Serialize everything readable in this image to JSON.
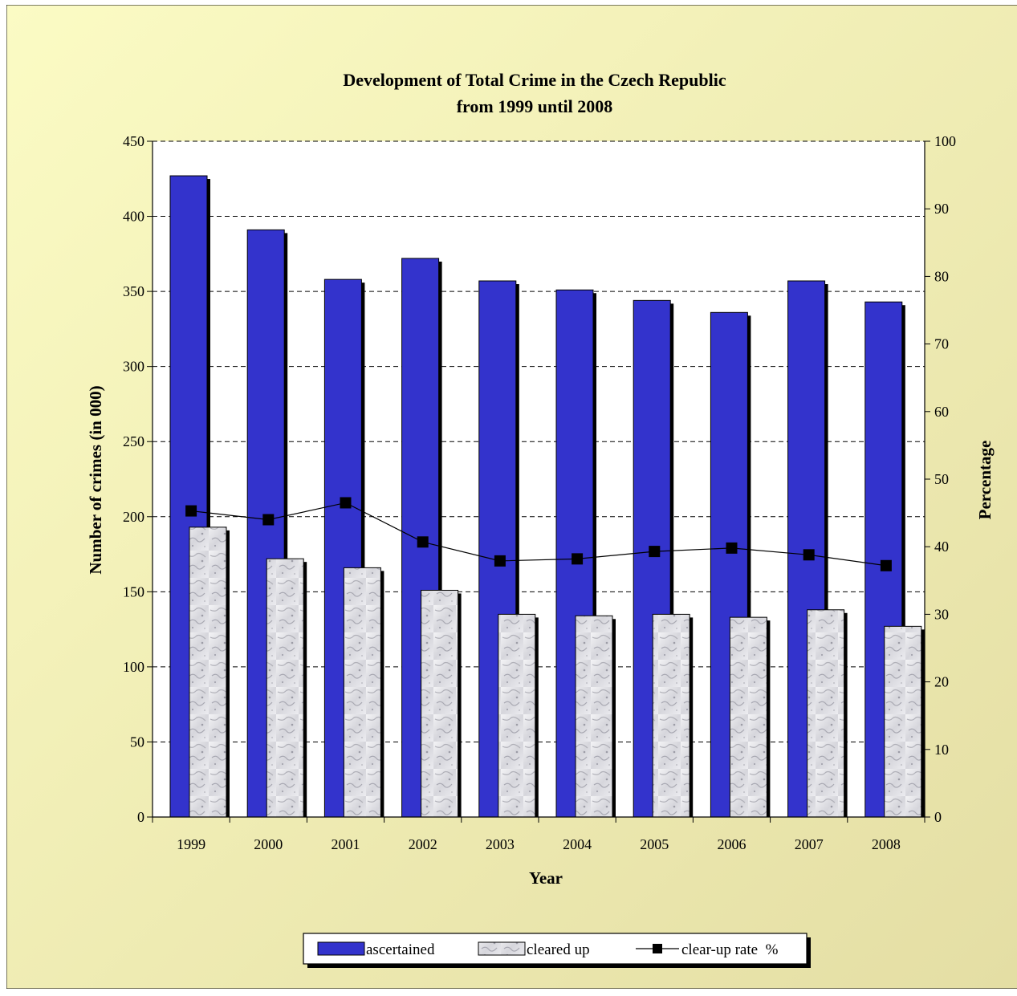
{
  "chart_data": {
    "type": "bar",
    "title": "Development of Total Crime in the Czech Republic",
    "subtitle": "from 1999 until 2008",
    "xlabel": "Year",
    "ylabel": "Number of crimes (in 000)",
    "y2label": "Percentage",
    "categories": [
      "1999",
      "2000",
      "2001",
      "2002",
      "2003",
      "2004",
      "2005",
      "2006",
      "2007",
      "2008"
    ],
    "ylim": [
      0,
      450
    ],
    "yticks": [
      0,
      50,
      100,
      150,
      200,
      250,
      300,
      350,
      400,
      450
    ],
    "y2lim": [
      0,
      100
    ],
    "y2ticks": [
      0,
      10,
      20,
      30,
      40,
      50,
      60,
      70,
      80,
      90,
      100
    ],
    "grid": "horizontal dashed",
    "legend_position": "bottom",
    "series": [
      {
        "name": "ascertained",
        "type": "bar",
        "axis": "left",
        "color": "#3333cc",
        "values": [
          427,
          391,
          358,
          372,
          357,
          351,
          344,
          336,
          357,
          343
        ]
      },
      {
        "name": "cleared up",
        "type": "bar",
        "axis": "left",
        "color": "#e8e8ec",
        "values": [
          193,
          172,
          166,
          151,
          135,
          134,
          135,
          133,
          138,
          127
        ]
      },
      {
        "name": "clear-up rate  %",
        "type": "line",
        "axis": "right",
        "color": "#000000",
        "values": [
          45.3,
          44.0,
          46.5,
          40.7,
          37.9,
          38.2,
          39.3,
          39.8,
          38.8,
          37.2
        ]
      }
    ]
  }
}
